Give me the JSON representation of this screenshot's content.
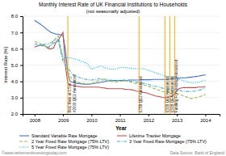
{
  "chart_data": {
    "type": "line",
    "title": "Monthly Interest Rate of UK Financial Institutions to Households",
    "subtitle": "(not seasonally adjusted)",
    "xlabel": "Year",
    "ylabel": "Interest Rate [%]",
    "xlim": [
      2007.58,
      2014.5
    ],
    "xticks": [
      2008,
      2009,
      2010,
      2011,
      2012,
      2013,
      2014
    ],
    "ylim": [
      2.0,
      8.0
    ],
    "yticks": [
      {
        "value": 2.0,
        "label": "2.0"
      },
      {
        "value": 3.0,
        "label": "3.0"
      },
      {
        "value": 4.0,
        "label": "4.0"
      },
      {
        "value": 5.0,
        "label": "5.0"
      },
      {
        "value": 6.0,
        "label": "6.0"
      },
      {
        "value": 7.0,
        "label": "7.0"
      },
      {
        "value": 8.0,
        "label": "8.0"
      }
    ],
    "grid": "y",
    "legend": "bottom",
    "annotations": [
      {
        "x": 2009.17,
        "label": "BoE Rate at 0.5%\n#2009 QE1 Announced",
        "color": "#FFA500"
      },
      {
        "x": 2011.67,
        "label": "£75B QE2 Announced",
        "color": "#FFA500"
      },
      {
        "x": 2012.58,
        "label": "£50B QE3 Announced",
        "color": "#FFA500"
      },
      {
        "x": 2012.75,
        "label": "£50B QE4 Announced",
        "color": "#FFA500"
      },
      {
        "x": 2012.92,
        "label": "Funding For Lending Announced",
        "color": "#FFA500"
      }
    ],
    "footnotes": [
      "©www.retirementinvestingtoday.com",
      "Data Source: Bank of England"
    ],
    "series": [
      {
        "name": "Standard Variable Rate Mortgage",
        "color": "#4472C4",
        "line_style": "solid",
        "x": [
          2008.0,
          2008.08,
          2008.17,
          2008.25,
          2008.33,
          2008.42,
          2008.5,
          2008.58,
          2008.67,
          2008.75,
          2008.83,
          2008.92,
          2009.0,
          2009.08,
          2009.17,
          2009.25,
          2009.33,
          2009.42,
          2009.5,
          2009.58,
          2009.67,
          2009.75,
          2009.83,
          2009.92,
          2010.0,
          2010.08,
          2010.17,
          2010.25,
          2010.33,
          2010.42,
          2010.5,
          2010.58,
          2010.67,
          2010.75,
          2010.83,
          2010.92,
          2011.0,
          2011.08,
          2011.17,
          2011.25,
          2011.33,
          2011.42,
          2011.5,
          2011.58,
          2011.67,
          2011.75,
          2011.83,
          2011.92,
          2012.0,
          2012.08,
          2012.17,
          2012.25,
          2012.33,
          2012.42,
          2012.5,
          2012.58,
          2012.67,
          2012.75,
          2012.83,
          2012.92,
          2013.0,
          2013.08,
          2013.17,
          2013.25,
          2013.33,
          2013.42,
          2013.5,
          2013.58,
          2013.67,
          2013.75,
          2013.83,
          2013.92,
          2014.0
        ],
        "values": [
          7.75,
          7.65,
          7.55,
          7.45,
          7.35,
          7.2,
          7.1,
          7.0,
          6.95,
          6.9,
          6.9,
          6.85,
          6.8,
          6.0,
          4.5,
          4.0,
          3.95,
          3.9,
          3.88,
          3.86,
          3.84,
          3.82,
          3.82,
          3.82,
          3.85,
          3.87,
          3.9,
          3.92,
          3.95,
          3.97,
          4.0,
          4.02,
          4.05,
          4.05,
          4.05,
          4.05,
          4.05,
          4.05,
          4.05,
          4.05,
          4.08,
          4.08,
          4.08,
          4.08,
          4.08,
          4.1,
          4.1,
          4.1,
          4.1,
          4.1,
          4.12,
          4.12,
          4.12,
          4.12,
          4.12,
          4.12,
          4.12,
          4.15,
          4.15,
          4.2,
          4.2,
          4.22,
          4.22,
          4.22,
          4.22,
          4.25,
          4.25,
          4.28,
          4.3,
          4.32,
          4.35,
          4.38,
          4.4
        ]
      },
      {
        "name": "Lifetime Tracker Mortgage",
        "color": "#C0504D",
        "line_style": "solid",
        "x": [
          2008.0,
          2008.08,
          2008.17,
          2008.25,
          2008.33,
          2008.42,
          2008.5,
          2008.58,
          2008.67,
          2008.75,
          2008.83,
          2008.92,
          2009.0,
          2009.08,
          2009.17,
          2009.25,
          2009.33,
          2009.42,
          2009.5,
          2009.58,
          2009.67,
          2009.75,
          2009.83,
          2009.92,
          2010.0,
          2010.08,
          2010.17,
          2010.25,
          2010.33,
          2010.42,
          2010.5,
          2010.58,
          2010.67,
          2010.75,
          2010.83,
          2010.92,
          2011.0,
          2011.08,
          2011.17,
          2011.25,
          2011.33,
          2011.42,
          2011.5,
          2011.58,
          2011.67,
          2011.75,
          2011.83,
          2011.92,
          2012.0,
          2012.08,
          2012.17,
          2012.25,
          2012.33,
          2012.42,
          2012.5,
          2012.58,
          2012.67,
          2012.75,
          2012.83,
          2012.92,
          2013.0,
          2013.08,
          2013.17,
          2013.25,
          2013.33,
          2013.42,
          2013.5,
          2013.58,
          2013.67,
          2013.75,
          2013.83,
          2013.92,
          2014.0
        ],
        "values": [
          6.1,
          6.15,
          6.2,
          6.2,
          6.25,
          6.1,
          6.0,
          6.0,
          6.05,
          6.4,
          6.5,
          6.8,
          7.0,
          5.0,
          3.9,
          3.8,
          3.75,
          3.72,
          3.7,
          3.68,
          3.65,
          3.65,
          3.65,
          3.65,
          3.65,
          3.65,
          3.65,
          3.65,
          3.62,
          3.6,
          3.58,
          3.55,
          3.55,
          3.55,
          3.55,
          3.55,
          3.55,
          3.55,
          3.52,
          3.5,
          3.5,
          3.48,
          3.45,
          3.4,
          3.38,
          3.35,
          3.32,
          3.3,
          3.25,
          3.2,
          3.15,
          3.1,
          3.08,
          3.05,
          3.02,
          3.0,
          3.02,
          3.05,
          3.1,
          3.2,
          3.45,
          3.55,
          3.6,
          3.62,
          3.62,
          3.62,
          3.62,
          3.62,
          3.62,
          3.65,
          3.65,
          3.65,
          3.68
        ]
      },
      {
        "name": "2 Year Fixed Rate Mortgage (75% LTV)",
        "color": "#9BBB59",
        "line_style": "dashed",
        "x": [
          2008.0,
          2008.17,
          2008.33,
          2008.5,
          2008.67,
          2008.83,
          2009.0,
          2009.17,
          2009.33,
          2009.5,
          2009.67,
          2009.83,
          2010.0,
          2010.17,
          2010.33,
          2010.5,
          2010.67,
          2010.83,
          2011.0,
          2011.17,
          2011.33,
          2011.5,
          2011.67,
          2011.83,
          2012.0,
          2012.17,
          2012.33,
          2012.5,
          2012.67,
          2012.83,
          2013.0,
          2013.17,
          2013.33,
          2013.5,
          2013.67,
          2013.83,
          2014.0
        ],
        "values": [
          6.45,
          6.35,
          6.2,
          6.1,
          6.5,
          6.8,
          5.4,
          4.6,
          4.1,
          3.95,
          3.88,
          3.85,
          3.85,
          4.0,
          4.1,
          4.05,
          4.0,
          3.95,
          4.0,
          4.05,
          4.0,
          3.88,
          3.82,
          3.78,
          3.7,
          3.58,
          3.48,
          3.38,
          3.32,
          3.3,
          3.25,
          3.15,
          3.05,
          2.95,
          3.0,
          3.08,
          3.2
        ]
      },
      {
        "name": "3 Year Fixed Rate Mortgage (75% LTV)",
        "color": "#4BACC6",
        "line_style": "dashdot",
        "x": [
          2008.0,
          2008.17,
          2008.33,
          2008.5,
          2008.67,
          2008.83,
          2009.0,
          2009.17,
          2009.33,
          2009.5,
          2009.67,
          2009.83,
          2010.0,
          2010.17,
          2010.33,
          2010.5,
          2010.67,
          2010.83,
          2011.0,
          2011.17,
          2011.33,
          2011.5,
          2011.67,
          2011.83,
          2012.0,
          2012.17,
          2012.33,
          2012.5,
          2012.67,
          2012.83,
          2013.0,
          2013.17,
          2013.33,
          2013.5,
          2013.67,
          2013.83,
          2014.0
        ],
        "values": [
          6.3,
          6.25,
          6.15,
          6.1,
          6.35,
          6.55,
          5.2,
          4.8,
          4.45,
          4.28,
          4.18,
          4.12,
          4.08,
          4.12,
          4.18,
          4.12,
          4.08,
          4.02,
          4.08,
          4.08,
          4.02,
          3.98,
          3.92,
          3.88,
          3.82,
          3.72,
          3.68,
          3.58,
          3.52,
          3.52,
          3.48,
          3.42,
          3.38,
          3.38,
          3.42,
          3.48,
          3.58
        ]
      },
      {
        "name": "5 Year Fixed Rate Mortgage (75% LTV)",
        "color": "#00B0F0",
        "line_style": "dotted",
        "x": [
          2008.0,
          2008.17,
          2008.33,
          2008.5,
          2008.67,
          2008.83,
          2009.0,
          2009.17,
          2009.33,
          2009.5,
          2009.67,
          2009.83,
          2010.0,
          2010.17,
          2010.33,
          2010.5,
          2010.67,
          2010.83,
          2011.0,
          2011.17,
          2011.33,
          2011.5,
          2011.67,
          2011.83,
          2012.0,
          2012.17,
          2012.33,
          2012.5,
          2012.67,
          2012.83,
          2013.0,
          2013.17,
          2013.33,
          2013.5,
          2013.67,
          2013.83,
          2014.0
        ],
        "values": [
          6.15,
          6.22,
          6.28,
          6.3,
          6.5,
          6.58,
          5.45,
          5.45,
          5.42,
          5.32,
          5.22,
          5.12,
          4.75,
          4.85,
          4.95,
          4.82,
          4.75,
          4.75,
          4.85,
          4.85,
          4.82,
          4.78,
          4.78,
          4.78,
          4.68,
          4.58,
          4.48,
          4.38,
          4.28,
          4.28,
          4.18,
          4.08,
          3.98,
          3.92,
          3.92,
          3.98,
          4.08
        ]
      }
    ]
  }
}
